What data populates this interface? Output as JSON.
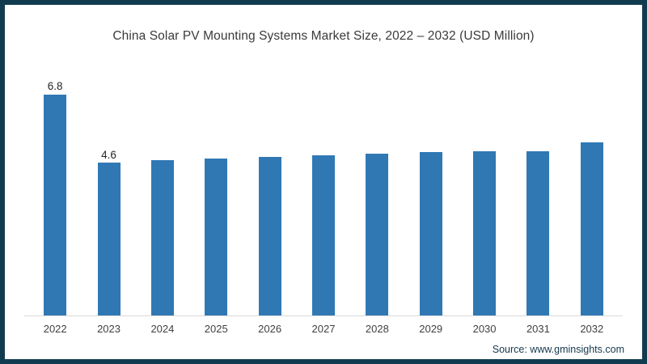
{
  "chart_data": {
    "type": "bar",
    "title": "China Solar PV Mounting Systems Market Size, 2022 – 2032 (USD Million)",
    "categories": [
      "2022",
      "2023",
      "2024",
      "2025",
      "2026",
      "2027",
      "2028",
      "2029",
      "2030",
      "2031",
      "2032"
    ],
    "values": [
      6.8,
      4.6,
      4.68,
      4.73,
      4.78,
      4.83,
      4.88,
      4.92,
      4.95,
      4.95,
      5.22
    ],
    "data_labels": [
      "6.8",
      "4.6",
      "",
      "",
      "",
      "",
      "",
      "",
      "",
      "",
      ""
    ],
    "xlabel": "",
    "ylabel": "",
    "ylim": [
      0,
      7.1
    ],
    "grid": false,
    "legend": null,
    "bar_color": "#3078b4"
  },
  "colors": {
    "frame": "#113c50",
    "axis_line": "#d9d9d9",
    "title_text": "#3a3a3a",
    "source_text": "#14374d"
  },
  "footer": {
    "source_label": "Source: www.gminsights.com"
  }
}
